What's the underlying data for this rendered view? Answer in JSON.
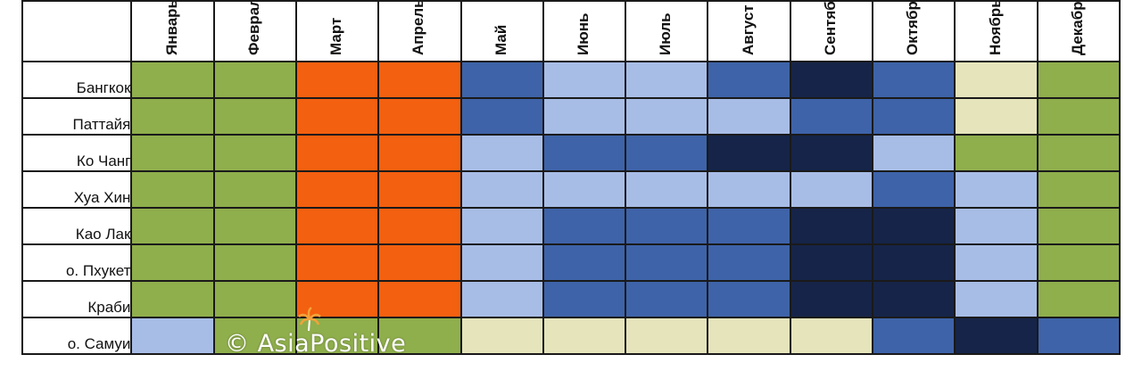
{
  "months": [
    "Январь",
    "Февраль",
    "Март",
    "Апрель",
    "Май",
    "Июнь",
    "Июль",
    "Август",
    "Сентябрь",
    "Октябрь",
    "Ноябрь",
    "Декабрь"
  ],
  "rows": [
    {
      "city": "Бангкок",
      "cells": [
        "green",
        "green",
        "orange",
        "orange",
        "medium",
        "light",
        "light",
        "medium",
        "dark",
        "medium",
        "cream",
        "green"
      ]
    },
    {
      "city": "Паттайя",
      "cells": [
        "green",
        "green",
        "orange",
        "orange",
        "medium",
        "light",
        "light",
        "light",
        "medium",
        "medium",
        "cream",
        "green"
      ]
    },
    {
      "city": "Ко Чанг",
      "cells": [
        "green",
        "green",
        "orange",
        "orange",
        "light",
        "medium",
        "medium",
        "dark",
        "dark",
        "light",
        "green",
        "green"
      ]
    },
    {
      "city": "Хуа Хин",
      "cells": [
        "green",
        "green",
        "orange",
        "orange",
        "light",
        "light",
        "light",
        "light",
        "light",
        "medium",
        "light",
        "green"
      ]
    },
    {
      "city": "Као Лак",
      "cells": [
        "green",
        "green",
        "orange",
        "orange",
        "light",
        "medium",
        "medium",
        "medium",
        "dark",
        "dark",
        "light",
        "green"
      ]
    },
    {
      "city": "о. Пхукет",
      "cells": [
        "green",
        "green",
        "orange",
        "orange",
        "light",
        "medium",
        "medium",
        "medium",
        "dark",
        "dark",
        "light",
        "green"
      ]
    },
    {
      "city": "Краби",
      "cells": [
        "green",
        "green",
        "orange",
        "orange",
        "light",
        "medium",
        "medium",
        "medium",
        "dark",
        "dark",
        "light",
        "green"
      ]
    },
    {
      "city": "о. Самуи",
      "cells": [
        "light",
        "green",
        "green",
        "green",
        "cream",
        "cream",
        "cream",
        "cream",
        "cream",
        "medium",
        "dark",
        "medium"
      ]
    }
  ],
  "colors": {
    "green": "#8fae4c",
    "orange": "#f3600f",
    "cream": "#e5e4bb",
    "light": "#a8bde6",
    "medium": "#3e63a8",
    "dark": "#152448"
  },
  "watermark": {
    "text": "© AsiaPositive",
    "icon": "palm-tree-icon"
  }
}
